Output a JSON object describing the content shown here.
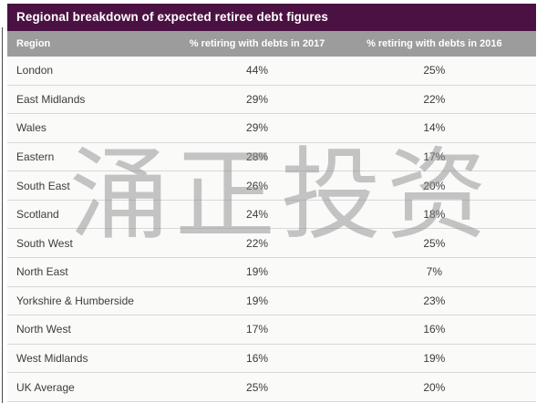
{
  "chart_data": {
    "type": "table",
    "title": "Regional breakdown of expected retiree debt figures",
    "columns": [
      "Region",
      "% retiring with debts in 2017",
      "% retiring with debts in 2016"
    ],
    "rows": [
      [
        "London",
        "44%",
        "25%"
      ],
      [
        "East Midlands",
        "29%",
        "22%"
      ],
      [
        "Wales",
        "29%",
        "14%"
      ],
      [
        "Eastern",
        "28%",
        "17%"
      ],
      [
        "South East",
        "26%",
        "20%"
      ],
      [
        "Scotland",
        "24%",
        "18%"
      ],
      [
        "South West",
        "22%",
        "25%"
      ],
      [
        "North East",
        "19%",
        "7%"
      ],
      [
        "Yorkshire & Humberside",
        "19%",
        "23%"
      ],
      [
        "North West",
        "17%",
        "16%"
      ],
      [
        "West Midlands",
        "16%",
        "19%"
      ],
      [
        "UK Average",
        "25%",
        "20%"
      ]
    ]
  },
  "watermark": "涌正投资",
  "colors": {
    "title_bg": "#4a1142",
    "title_fg": "#ffffff",
    "header_bg": "#9c9c9c",
    "header_fg": "#ffffff",
    "row_bg": "#fafaf9",
    "row_fg": "#3b3b3b",
    "separator": "#d8d8d8",
    "watermark_color": "#8e8e8e"
  }
}
